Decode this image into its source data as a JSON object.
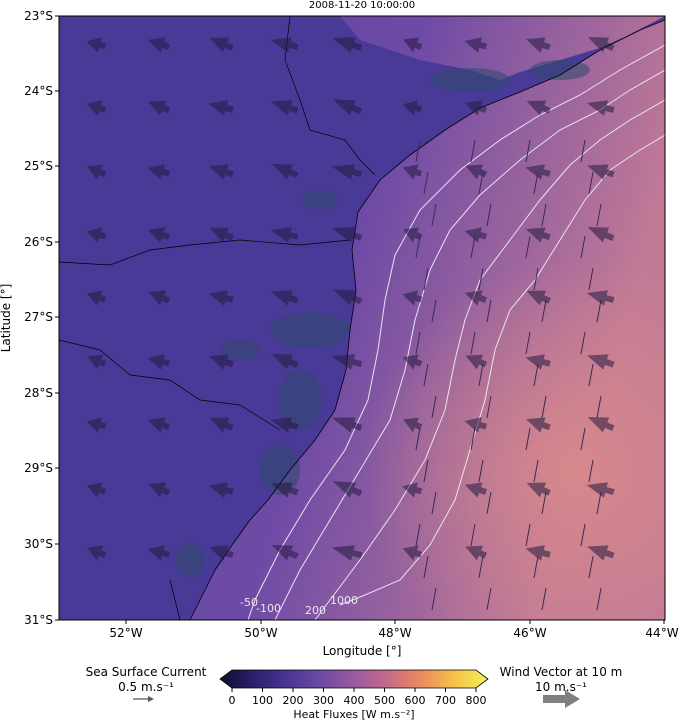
{
  "title": "2008-11-20 10:00:00",
  "xaxis": {
    "label": "Longitude [°]",
    "ticks": [
      "52°W",
      "50°W",
      "48°W",
      "46°W",
      "44°W"
    ]
  },
  "yaxis": {
    "label": "Latitude [°]",
    "ticks": [
      "23°S",
      "24°S",
      "25°S",
      "26°S",
      "27°S",
      "28°S",
      "29°S",
      "30°S",
      "31°S"
    ]
  },
  "contour_labels": [
    "-50",
    "-100",
    "200",
    "1000"
  ],
  "colorbar": {
    "label": "Heat Fluxes [W m.s⁻²]",
    "ticks": [
      "0",
      "100",
      "200",
      "300",
      "400",
      "500",
      "600",
      "700",
      "800"
    ],
    "range": [
      0,
      800
    ],
    "colors": [
      "#0b0f30",
      "#2b1f6b",
      "#4a3594",
      "#6c4aa4",
      "#9a5aa0",
      "#c56a8a",
      "#ec8a5e",
      "#f6c14a",
      "#f4f05a"
    ]
  },
  "legend": {
    "current_title": "Sea Surface Current",
    "current_scale": "0.5 m.s⁻¹",
    "wind_title": "Wind Vector at 10 m",
    "wind_scale": "10 m.s⁻¹"
  },
  "map": {
    "extent_lon": [
      -53,
      -44
    ],
    "extent_lat": [
      -31,
      -23
    ],
    "land_color": "#4a3a98",
    "ocean_near_color": "#5a46a8",
    "ocean_far_color": "#c07a96"
  }
}
